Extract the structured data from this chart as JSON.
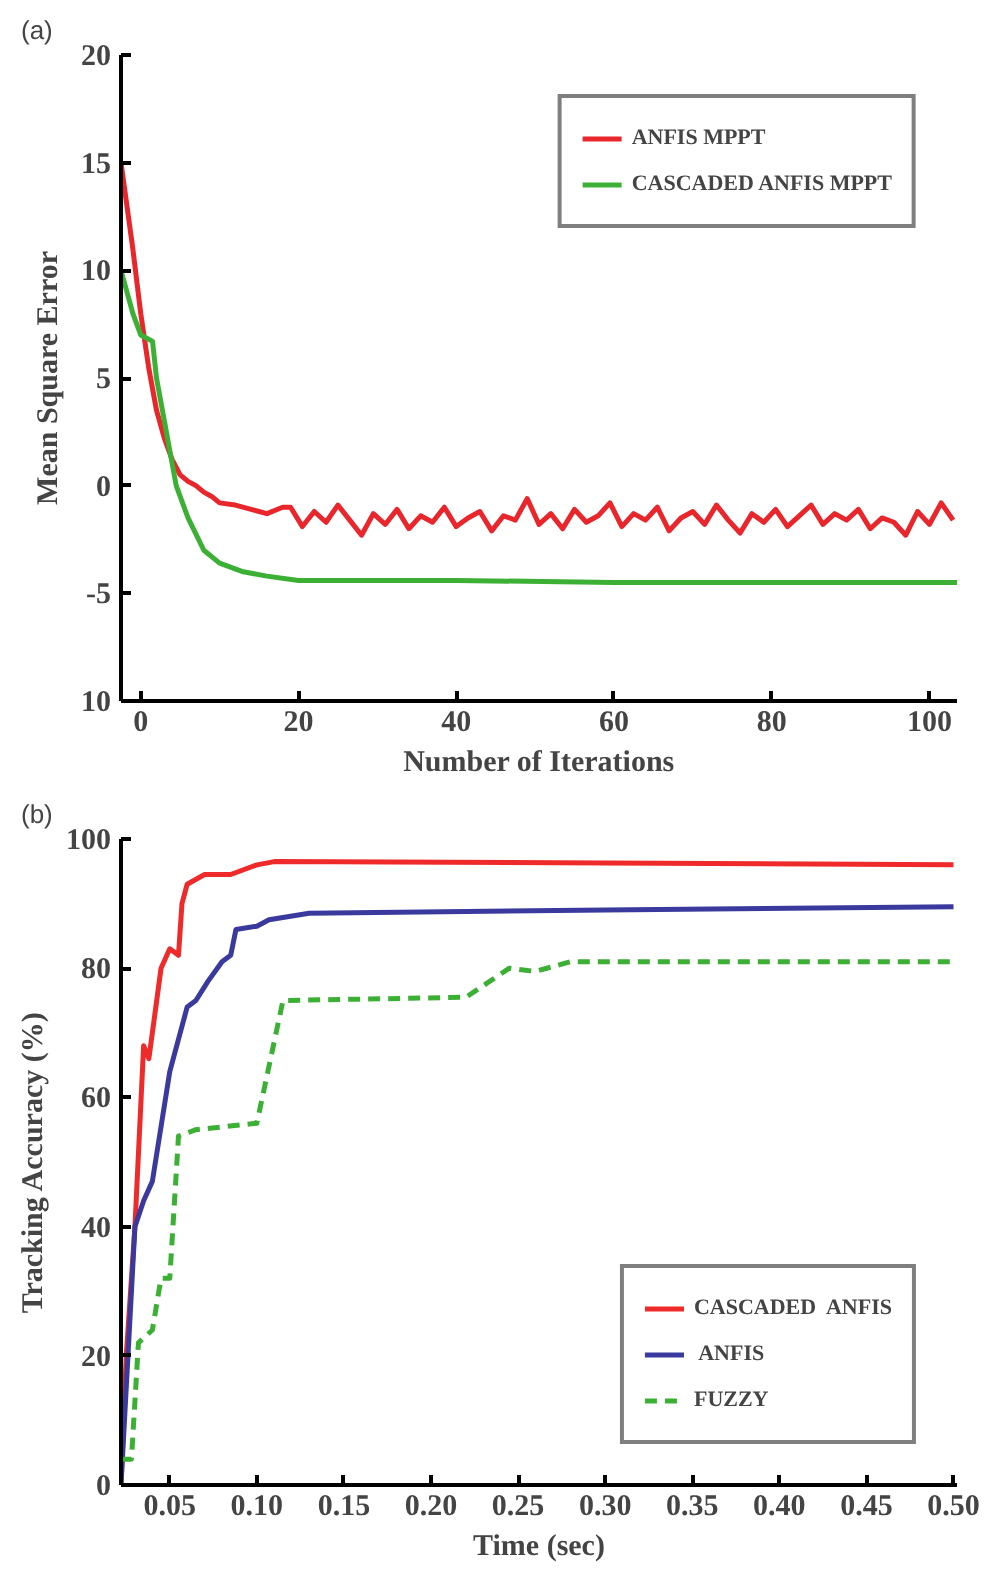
{
  "chart_data": [
    {
      "type": "line",
      "annotations": [
        "(a)"
      ],
      "xlabel": "Number of Iterations",
      "ylabel": "Mean Square Error",
      "xlim": [
        -2.5,
        103.5
      ],
      "ylim": [
        -10,
        20
      ],
      "xticks": [
        0,
        20,
        40,
        60,
        80,
        100
      ],
      "yticks": [
        {
          "value": -10,
          "label": "10"
        },
        -5,
        0,
        5,
        10,
        15,
        20
      ],
      "grid": false,
      "legend": "top right",
      "line_style": "solid",
      "marker": "none",
      "series": [
        {
          "name": "ANFIS MPPT",
          "color": "#e8262b",
          "x": [
            -2.5,
            -1,
            0,
            1,
            2,
            3,
            4,
            5,
            6,
            7,
            8,
            9,
            10,
            12,
            14,
            16,
            18,
            19,
            20.5,
            22,
            23.5,
            25,
            26.5,
            28,
            29.5,
            31,
            32.5,
            34,
            35.5,
            37,
            38.5,
            40,
            41.5,
            43,
            44.5,
            46,
            47.5,
            49,
            50.5,
            52,
            53.5,
            55,
            56.5,
            58,
            59.5,
            61,
            62.5,
            64,
            65.5,
            67,
            68.5,
            70,
            71.5,
            73,
            74.5,
            76,
            77.5,
            79,
            80.5,
            82,
            83.5,
            85,
            86.5,
            88,
            89.5,
            91,
            92.5,
            94,
            95.5,
            97,
            98.5,
            100,
            101.5,
            103
          ],
          "values": [
            15,
            11,
            8,
            5.5,
            3.5,
            2.2,
            1.2,
            0.5,
            0.2,
            0,
            -0.3,
            -0.5,
            -0.8,
            -0.9,
            -1.1,
            -1.3,
            -1.0,
            -1.0,
            -1.9,
            -1.2,
            -1.7,
            -0.9,
            -1.6,
            -2.3,
            -1.3,
            -1.8,
            -1.1,
            -2.0,
            -1.4,
            -1.7,
            -1.0,
            -1.9,
            -1.5,
            -1.2,
            -2.1,
            -1.4,
            -1.6,
            -0.6,
            -1.8,
            -1.3,
            -2.0,
            -1.1,
            -1.7,
            -1.4,
            -0.8,
            -1.9,
            -1.3,
            -1.6,
            -1.0,
            -2.1,
            -1.5,
            -1.2,
            -1.8,
            -0.9,
            -1.6,
            -2.2,
            -1.3,
            -1.7,
            -1.1,
            -1.9,
            -1.4,
            -0.9,
            -1.8,
            -1.3,
            -1.6,
            -1.1,
            -2.0,
            -1.5,
            -1.7,
            -2.3,
            -1.2,
            -1.8,
            -0.8,
            -1.6
          ]
        },
        {
          "name": "CASCADED ANFIS MPPT",
          "color": "#3cb034",
          "x": [
            -2.5,
            -1,
            0,
            1,
            1.5,
            2,
            3,
            4,
            4.5,
            6,
            8,
            10,
            13,
            16,
            20,
            40,
            60,
            80,
            103.5
          ],
          "values": [
            10,
            8,
            7,
            6.8,
            6.7,
            5,
            3,
            1,
            0,
            -1.5,
            -3,
            -3.6,
            -4,
            -4.2,
            -4.4,
            -4.4,
            -4.5,
            -4.5,
            -4.5
          ]
        }
      ]
    },
    {
      "type": "line",
      "annotations": [
        "(b)"
      ],
      "xlabel": "Time (sec)",
      "ylabel": "Tracking Accuracy (%)",
      "xlim": [
        0.022,
        0.502
      ],
      "ylim": [
        0,
        100
      ],
      "xticks": [
        {
          "value": 0.05,
          "label": "0.05"
        },
        {
          "value": 0.1,
          "label": "0.10"
        },
        {
          "value": 0.15,
          "label": "0.15"
        },
        {
          "value": 0.2,
          "label": "0.20"
        },
        {
          "value": 0.25,
          "label": "0.25"
        },
        {
          "value": 0.3,
          "label": "0.30"
        },
        {
          "value": 0.35,
          "label": "0.35"
        },
        {
          "value": 0.4,
          "label": "0.40"
        },
        {
          "value": 0.45,
          "label": "0.45"
        },
        {
          "value": 0.5,
          "label": "0.50"
        }
      ],
      "yticks": [
        0,
        20,
        40,
        60,
        80,
        100
      ],
      "grid": false,
      "legend": "bottom right",
      "marker": "none",
      "series": [
        {
          "name": "CASCADED  ANFIS",
          "color": "#ee2a2a",
          "line_style": "solid",
          "x": [
            0.022,
            0.025,
            0.03,
            0.035,
            0.038,
            0.045,
            0.05,
            0.055,
            0.057,
            0.06,
            0.07,
            0.085,
            0.1,
            0.11,
            0.3,
            0.5
          ],
          "values": [
            0,
            20,
            40,
            68,
            66,
            80,
            83,
            82,
            90,
            93,
            94.5,
            94.5,
            96,
            96.5,
            96.3,
            96
          ]
        },
        {
          "name": " ANFIS",
          "color": "#3a3a9e",
          "line_style": "solid",
          "x": [
            0.022,
            0.03,
            0.035,
            0.04,
            0.05,
            0.06,
            0.065,
            0.072,
            0.08,
            0.085,
            0.088,
            0.1,
            0.107,
            0.13,
            0.3,
            0.5
          ],
          "values": [
            0,
            40,
            44,
            47,
            64,
            74,
            75,
            78,
            81,
            82,
            86,
            86.5,
            87.5,
            88.5,
            89,
            89.5
          ]
        },
        {
          "name": "FUZZY",
          "color": "#3cb034",
          "line_style": "dashed",
          "x": [
            0.022,
            0.028,
            0.032,
            0.04,
            0.045,
            0.05,
            0.055,
            0.065,
            0.1,
            0.115,
            0.22,
            0.245,
            0.26,
            0.28,
            0.5
          ],
          "values": [
            4,
            4,
            22,
            24,
            32,
            32,
            54,
            55,
            56,
            75,
            75.5,
            80,
            79.5,
            81,
            81
          ]
        }
      ]
    }
  ]
}
